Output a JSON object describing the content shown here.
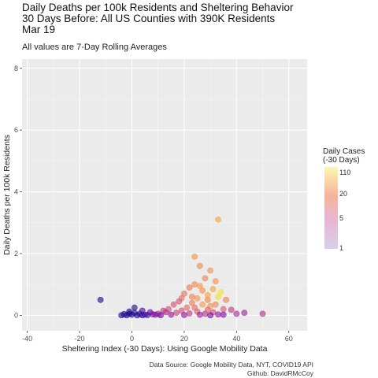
{
  "chart_data": {
    "type": "scatter",
    "title": "Daily Deaths per 100k Residents and Sheltering Behavior\n30 Days Before: All US Counties with 390K Residents\nMar 19",
    "subtitle": "All values are 7-Day Rolling Averages",
    "xlabel": "Sheltering Index (-30 Days): Using Google Mobility Data",
    "ylabel": "Daily Deaths per 100k Residents",
    "xlim": [
      -42,
      67
    ],
    "ylim": [
      -0.5,
      8.3
    ],
    "x_ticks": [
      -40,
      -20,
      0,
      20,
      40,
      60
    ],
    "y_ticks": [
      0,
      2,
      4,
      6,
      8
    ],
    "grid": true,
    "legend": {
      "title": "Daily Cases\n(-30 Days)",
      "placement": "right",
      "ticks": [
        {
          "label": "110",
          "frac": 0.92
        },
        {
          "label": "20",
          "frac": 0.66
        },
        {
          "label": "5",
          "frac": 0.37
        },
        {
          "label": "1",
          "frac": 0.0
        }
      ]
    },
    "caption": [
      "Data Source: Google Mobility Data, NYT, COVID19 API",
      "Github: DavidRMcCoy"
    ],
    "points": [
      {
        "x": -12,
        "y": 0.5,
        "c": 0.05
      },
      {
        "x": 24,
        "y": 1.9,
        "c": 0.75
      },
      {
        "x": 33,
        "y": 3.1,
        "c": 0.78
      },
      {
        "x": 26,
        "y": 1.6,
        "c": 0.7
      },
      {
        "x": 30,
        "y": 1.45,
        "c": 0.72
      },
      {
        "x": 28,
        "y": 1.2,
        "c": 0.68
      },
      {
        "x": 24,
        "y": 1.0,
        "c": 0.7
      },
      {
        "x": 32,
        "y": 1.1,
        "c": 0.74
      },
      {
        "x": 27,
        "y": 0.8,
        "c": 0.72
      },
      {
        "x": 22,
        "y": 0.9,
        "c": 0.66
      },
      {
        "x": 31,
        "y": 0.85,
        "c": 0.78
      },
      {
        "x": 34,
        "y": 0.75,
        "c": 0.95
      },
      {
        "x": 33,
        "y": 0.6,
        "c": 0.93
      },
      {
        "x": 20,
        "y": 0.7,
        "c": 0.62
      },
      {
        "x": 25,
        "y": 0.55,
        "c": 0.74
      },
      {
        "x": 29,
        "y": 0.5,
        "c": 0.7
      },
      {
        "x": 18,
        "y": 0.45,
        "c": 0.55
      },
      {
        "x": 36,
        "y": 0.5,
        "c": 0.68
      },
      {
        "x": 23,
        "y": 0.4,
        "c": 0.66
      },
      {
        "x": 16,
        "y": 0.35,
        "c": 0.52
      },
      {
        "x": 27,
        "y": 0.35,
        "c": 0.76
      },
      {
        "x": 30,
        "y": 0.3,
        "c": 0.72
      },
      {
        "x": 21,
        "y": 0.25,
        "c": 0.6
      },
      {
        "x": 14,
        "y": 0.2,
        "c": 0.5
      },
      {
        "x": 35,
        "y": 0.2,
        "c": 0.55
      },
      {
        "x": 38,
        "y": 0.18,
        "c": 0.45
      },
      {
        "x": 12,
        "y": 0.15,
        "c": 0.45
      },
      {
        "x": 19,
        "y": 0.15,
        "c": 0.52
      },
      {
        "x": 25,
        "y": 0.12,
        "c": 0.55
      },
      {
        "x": 31,
        "y": 0.1,
        "c": 0.5
      },
      {
        "x": 17,
        "y": 0.08,
        "c": 0.48
      },
      {
        "x": 22,
        "y": 0.06,
        "c": 0.45
      },
      {
        "x": 28,
        "y": 0.05,
        "c": 0.42
      },
      {
        "x": 10,
        "y": 0.05,
        "c": 0.4
      },
      {
        "x": 40,
        "y": 0.05,
        "c": 0.38
      },
      {
        "x": 43,
        "y": 0.08,
        "c": 0.35
      },
      {
        "x": 50,
        "y": 0.05,
        "c": 0.4
      },
      {
        "x": 33,
        "y": 0.03,
        "c": 0.3
      },
      {
        "x": 26,
        "y": 0.02,
        "c": 0.32
      },
      {
        "x": 35,
        "y": 0.02,
        "c": 0.25
      },
      {
        "x": 15,
        "y": 0.02,
        "c": 0.3
      },
      {
        "x": 8,
        "y": 0.03,
        "c": 0.3
      },
      {
        "x": 20,
        "y": 0.01,
        "c": 0.28
      },
      {
        "x": 30,
        "y": 0.0,
        "c": 0.22
      },
      {
        "x": 5,
        "y": 0.02,
        "c": 0.2
      },
      {
        "x": 3,
        "y": 0.05,
        "c": 0.1
      },
      {
        "x": 1,
        "y": 0.08,
        "c": 0.05
      },
      {
        "x": 0,
        "y": 0.02,
        "c": 0.02
      },
      {
        "x": -1,
        "y": 0.05,
        "c": 0.03
      },
      {
        "x": -2,
        "y": 0.0,
        "c": 0.02
      },
      {
        "x": -3,
        "y": 0.04,
        "c": 0.03
      },
      {
        "x": -4,
        "y": 0.0,
        "c": 0.02
      },
      {
        "x": 2,
        "y": 0.0,
        "c": 0.02
      },
      {
        "x": 4,
        "y": 0.0,
        "c": 0.05
      },
      {
        "x": 6,
        "y": 0.01,
        "c": 0.08
      },
      {
        "x": 1,
        "y": 0.25,
        "c": 0.05
      },
      {
        "x": 4,
        "y": 0.15,
        "c": 0.12
      },
      {
        "x": -1,
        "y": 0.12,
        "c": 0.02
      },
      {
        "x": 7,
        "y": 0.1,
        "c": 0.2
      },
      {
        "x": 9,
        "y": 0.02,
        "c": 0.25
      },
      {
        "x": 11,
        "y": 0.0,
        "c": 0.2
      },
      {
        "x": 13,
        "y": 0.1,
        "c": 0.42
      },
      {
        "x": 24,
        "y": 0.25,
        "c": 0.62
      },
      {
        "x": 29,
        "y": 0.18,
        "c": 0.58
      },
      {
        "x": 32,
        "y": 0.35,
        "c": 0.7
      },
      {
        "x": 19,
        "y": 0.55,
        "c": 0.62
      },
      {
        "x": 26,
        "y": 0.95,
        "c": 0.74
      },
      {
        "x": 29,
        "y": 0.65,
        "c": 0.78
      },
      {
        "x": 23,
        "y": 0.6,
        "c": 0.68
      }
    ]
  }
}
